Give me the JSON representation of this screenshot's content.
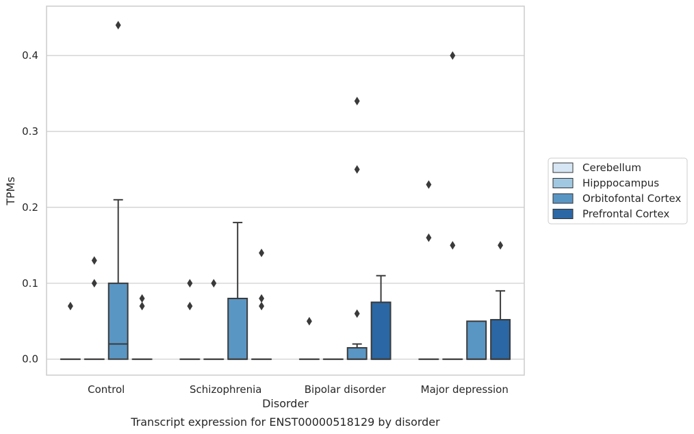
{
  "caption": "Transcript expression for ENST00000518129 by disorder",
  "chart_data": {
    "type": "box",
    "title": "",
    "xlabel": "Disorder",
    "ylabel": "TPMs",
    "ylim": [
      -0.021,
      0.465
    ],
    "yticks": [
      0.0,
      0.1,
      0.2,
      0.3,
      0.4
    ],
    "ytick_labels": [
      "0.0",
      "0.1",
      "0.2",
      "0.3",
      "0.4"
    ],
    "grid": "horizontal",
    "legend_position": "right",
    "categories": [
      "Control",
      "Schizophrenia",
      "Bipolar disorder",
      "Major depression"
    ],
    "series": [
      {
        "name": "Cerebellum",
        "color": "#d6e6f4",
        "boxes": [
          {
            "q1": 0,
            "median": 0,
            "q3": 0,
            "whislo": 0,
            "whishi": 0,
            "fliers": [
              0.07
            ]
          },
          {
            "q1": 0,
            "median": 0,
            "q3": 0,
            "whislo": 0,
            "whishi": 0,
            "fliers": [
              0.07,
              0.1
            ]
          },
          {
            "q1": 0,
            "median": 0,
            "q3": 0,
            "whislo": 0,
            "whishi": 0,
            "fliers": [
              0.05
            ]
          },
          {
            "q1": 0,
            "median": 0,
            "q3": 0,
            "whislo": 0,
            "whishi": 0,
            "fliers": [
              0.16,
              0.23
            ]
          }
        ]
      },
      {
        "name": "Hipppocampus",
        "color": "#a0c8e0",
        "boxes": [
          {
            "q1": 0,
            "median": 0,
            "q3": 0,
            "whislo": 0,
            "whishi": 0,
            "fliers": [
              0.1,
              0.13
            ]
          },
          {
            "q1": 0,
            "median": 0,
            "q3": 0,
            "whislo": 0,
            "whishi": 0,
            "fliers": [
              0.1
            ]
          },
          {
            "q1": 0,
            "median": 0,
            "q3": 0,
            "whislo": 0,
            "whishi": 0,
            "fliers": []
          },
          {
            "q1": 0,
            "median": 0,
            "q3": 0,
            "whislo": 0,
            "whishi": 0,
            "fliers": [
              0.15,
              0.4
            ]
          }
        ]
      },
      {
        "name": "Orbitofontal Cortex",
        "color": "#5a96c4",
        "boxes": [
          {
            "q1": 0,
            "median": 0.02,
            "q3": 0.1,
            "whislo": 0,
            "whishi": 0.21,
            "fliers": [
              0.44
            ]
          },
          {
            "q1": 0,
            "median": 0,
            "q3": 0.08,
            "whislo": 0,
            "whishi": 0.18,
            "fliers": []
          },
          {
            "q1": 0,
            "median": 0,
            "q3": 0.015,
            "whislo": 0,
            "whishi": 0.02,
            "fliers": [
              0.06,
              0.25,
              0.34
            ]
          },
          {
            "q1": 0,
            "median": 0,
            "q3": 0.05,
            "whislo": 0,
            "whishi": 0.05,
            "fliers": []
          }
        ]
      },
      {
        "name": "Prefrontal Cortex",
        "color": "#2a67a4",
        "boxes": [
          {
            "q1": 0,
            "median": 0,
            "q3": 0,
            "whislo": 0,
            "whishi": 0,
            "fliers": [
              0.07,
              0.08
            ]
          },
          {
            "q1": 0,
            "median": 0,
            "q3": 0,
            "whislo": 0,
            "whishi": 0,
            "fliers": [
              0.07,
              0.08,
              0.14
            ]
          },
          {
            "q1": 0,
            "median": 0,
            "q3": 0.075,
            "whislo": 0,
            "whishi": 0.11,
            "fliers": []
          },
          {
            "q1": 0,
            "median": 0,
            "q3": 0.052,
            "whislo": 0,
            "whishi": 0.09,
            "fliers": [
              0.15
            ]
          }
        ]
      }
    ]
  }
}
